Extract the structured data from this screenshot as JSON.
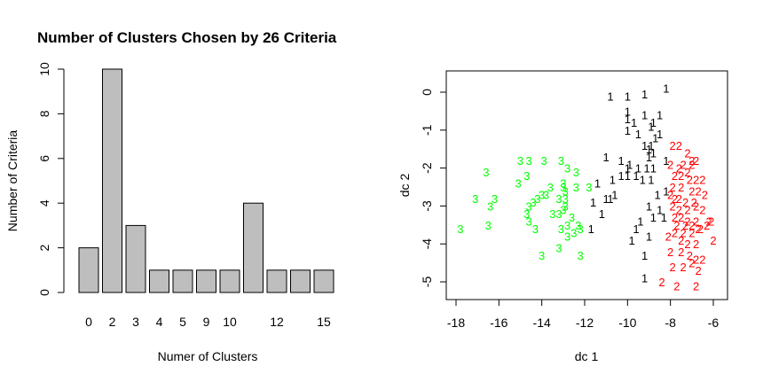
{
  "chart_data": [
    {
      "type": "bar",
      "title": "Number of Clusters Chosen by 26 Criteria",
      "xlabel": "Numer of Clusters",
      "ylabel": "Number of Criteria",
      "categories": [
        "0",
        "2",
        "3",
        "4",
        "5",
        "9",
        "10",
        "",
        "12",
        "",
        "15"
      ],
      "values": [
        2,
        10,
        3,
        1,
        1,
        1,
        1,
        4,
        1,
        1,
        1
      ],
      "ylim": [
        0,
        10
      ],
      "yticks": [
        "0",
        "2",
        "4",
        "6",
        "8",
        "10"
      ],
      "bar_color": "#bebebe",
      "grid": false
    },
    {
      "type": "scatter",
      "title": "",
      "xlabel": "dc 1",
      "ylabel": "dc 2",
      "xlim": [
        -18,
        -6
      ],
      "ylim": [
        -5,
        0
      ],
      "xticks": [
        "-18",
        "-16",
        "-14",
        "-12",
        "-10",
        "-8",
        "-6"
      ],
      "yticks": [
        "0",
        "-1",
        "-2",
        "-3",
        "-4",
        "-5"
      ],
      "grid": false,
      "series": [
        {
          "name": "1",
          "label": "1",
          "color": "#000000",
          "points": [
            [
              -10.8,
              -0.1
            ],
            [
              -10.0,
              -0.1
            ],
            [
              -9.2,
              -0.05
            ],
            [
              -8.2,
              0.1
            ],
            [
              -10.0,
              -0.5
            ],
            [
              -9.2,
              -0.6
            ],
            [
              -8.5,
              -0.6
            ],
            [
              -10.0,
              -0.7
            ],
            [
              -9.7,
              -0.8
            ],
            [
              -8.8,
              -0.8
            ],
            [
              -10.0,
              -1.0
            ],
            [
              -9.5,
              -1.1
            ],
            [
              -8.9,
              -0.9
            ],
            [
              -8.5,
              -1.1
            ],
            [
              -8.7,
              -1.2
            ],
            [
              -9.2,
              -1.4
            ],
            [
              -8.9,
              -1.4
            ],
            [
              -9.0,
              -1.5
            ],
            [
              -11.0,
              -1.7
            ],
            [
              -10.3,
              -1.8
            ],
            [
              -9.0,
              -1.7
            ],
            [
              -8.8,
              -1.6
            ],
            [
              -8.2,
              -1.8
            ],
            [
              -10.0,
              -2.0
            ],
            [
              -9.9,
              -1.9
            ],
            [
              -9.5,
              -2.0
            ],
            [
              -9.1,
              -2.0
            ],
            [
              -8.8,
              -2.0
            ],
            [
              -11.4,
              -2.4
            ],
            [
              -10.7,
              -2.3
            ],
            [
              -10.3,
              -2.2
            ],
            [
              -10.0,
              -2.2
            ],
            [
              -9.6,
              -2.2
            ],
            [
              -9.3,
              -2.3
            ],
            [
              -8.9,
              -2.3
            ],
            [
              -11.6,
              -2.9
            ],
            [
              -11.0,
              -2.8
            ],
            [
              -10.8,
              -2.8
            ],
            [
              -10.6,
              -2.7
            ],
            [
              -8.6,
              -2.7
            ],
            [
              -8.2,
              -2.6
            ],
            [
              -9.0,
              -3.0
            ],
            [
              -8.5,
              -3.1
            ],
            [
              -11.2,
              -3.2
            ],
            [
              -8.8,
              -3.3
            ],
            [
              -8.3,
              -3.3
            ],
            [
              -9.4,
              -3.4
            ],
            [
              -9.6,
              -3.6
            ],
            [
              -11.7,
              -3.6
            ],
            [
              -9.0,
              -3.8
            ],
            [
              -9.8,
              -3.9
            ],
            [
              -9.2,
              -4.3
            ],
            [
              -9.2,
              -4.9
            ]
          ]
        },
        {
          "name": "2",
          "label": "2",
          "color": "#ff0000",
          "points": [
            [
              -7.9,
              -1.4
            ],
            [
              -7.6,
              -1.4
            ],
            [
              -7.2,
              -1.6
            ],
            [
              -7.0,
              -1.8
            ],
            [
              -6.8,
              -1.8
            ],
            [
              -8.0,
              -1.9
            ],
            [
              -7.4,
              -1.9
            ],
            [
              -7.0,
              -1.9
            ],
            [
              -7.6,
              -2.0
            ],
            [
              -7.2,
              -2.1
            ],
            [
              -7.8,
              -2.2
            ],
            [
              -7.5,
              -2.2
            ],
            [
              -7.1,
              -2.3
            ],
            [
              -6.8,
              -2.3
            ],
            [
              -6.5,
              -2.3
            ],
            [
              -7.9,
              -2.5
            ],
            [
              -7.5,
              -2.5
            ],
            [
              -7.0,
              -2.6
            ],
            [
              -6.7,
              -2.6
            ],
            [
              -6.4,
              -2.7
            ],
            [
              -8.0,
              -2.7
            ],
            [
              -7.8,
              -2.8
            ],
            [
              -7.6,
              -2.8
            ],
            [
              -7.3,
              -2.9
            ],
            [
              -6.9,
              -2.9
            ],
            [
              -7.9,
              -3.0
            ],
            [
              -7.6,
              -3.1
            ],
            [
              -7.2,
              -3.1
            ],
            [
              -6.8,
              -3.0
            ],
            [
              -6.5,
              -3.1
            ],
            [
              -7.8,
              -3.3
            ],
            [
              -7.5,
              -3.3
            ],
            [
              -7.2,
              -3.4
            ],
            [
              -6.8,
              -3.4
            ],
            [
              -6.2,
              -3.4
            ],
            [
              -7.7,
              -3.5
            ],
            [
              -7.3,
              -3.5
            ],
            [
              -7.0,
              -3.5
            ],
            [
              -6.7,
              -3.6
            ],
            [
              -6.3,
              -3.5
            ],
            [
              -7.8,
              -3.7
            ],
            [
              -7.4,
              -3.7
            ],
            [
              -7.0,
              -3.7
            ],
            [
              -6.6,
              -3.6
            ],
            [
              -6.1,
              -3.4
            ],
            [
              -8.1,
              -3.8
            ],
            [
              -7.5,
              -3.9
            ],
            [
              -7.2,
              -4.0
            ],
            [
              -6.8,
              -4.0
            ],
            [
              -6.0,
              -3.9
            ],
            [
              -8.0,
              -4.2
            ],
            [
              -7.5,
              -4.2
            ],
            [
              -7.1,
              -4.3
            ],
            [
              -6.8,
              -4.4
            ],
            [
              -6.5,
              -4.4
            ],
            [
              -7.9,
              -4.6
            ],
            [
              -7.4,
              -4.6
            ],
            [
              -7.0,
              -4.5
            ],
            [
              -6.7,
              -4.7
            ],
            [
              -8.4,
              -5.0
            ],
            [
              -7.7,
              -5.1
            ],
            [
              -6.8,
              -5.1
            ]
          ]
        },
        {
          "name": "3",
          "label": "3",
          "color": "#00ff00",
          "points": [
            [
              -16.6,
              -2.1
            ],
            [
              -15.0,
              -1.8
            ],
            [
              -14.6,
              -1.8
            ],
            [
              -13.9,
              -1.8
            ],
            [
              -13.1,
              -1.8
            ],
            [
              -12.8,
              -2.0
            ],
            [
              -12.4,
              -2.1
            ],
            [
              -15.1,
              -2.4
            ],
            [
              -14.7,
              -2.2
            ],
            [
              -13.6,
              -2.5
            ],
            [
              -13.0,
              -2.4
            ],
            [
              -13.0,
              -2.5
            ],
            [
              -12.9,
              -2.6
            ],
            [
              -12.4,
              -2.5
            ],
            [
              -11.8,
              -2.5
            ],
            [
              -17.1,
              -2.8
            ],
            [
              -16.2,
              -2.8
            ],
            [
              -14.2,
              -2.8
            ],
            [
              -14.0,
              -2.7
            ],
            [
              -13.8,
              -2.7
            ],
            [
              -13.2,
              -2.8
            ],
            [
              -12.9,
              -2.8
            ],
            [
              -16.4,
              -3.0
            ],
            [
              -14.6,
              -3.0
            ],
            [
              -14.4,
              -2.9
            ],
            [
              -13.5,
              -3.2
            ],
            [
              -13.0,
              -3.1
            ],
            [
              -12.9,
              -3.0
            ],
            [
              -14.7,
              -3.2
            ],
            [
              -13.2,
              -3.2
            ],
            [
              -12.6,
              -3.3
            ],
            [
              -14.6,
              -3.4
            ],
            [
              -12.8,
              -3.5
            ],
            [
              -12.3,
              -3.5
            ],
            [
              -17.8,
              -3.6
            ],
            [
              -16.5,
              -3.5
            ],
            [
              -14.3,
              -3.6
            ],
            [
              -13.1,
              -3.6
            ],
            [
              -12.5,
              -3.7
            ],
            [
              -12.2,
              -3.6
            ],
            [
              -12.8,
              -3.8
            ],
            [
              -13.2,
              -4.1
            ],
            [
              -14.0,
              -4.3
            ],
            [
              -12.2,
              -4.3
            ]
          ]
        }
      ]
    }
  ]
}
